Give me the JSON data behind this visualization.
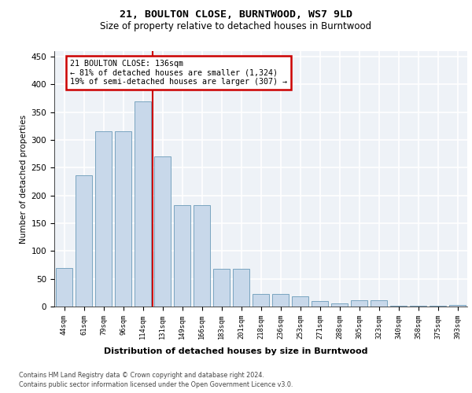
{
  "title": "21, BOULTON CLOSE, BURNTWOOD, WS7 9LD",
  "subtitle": "Size of property relative to detached houses in Burntwood",
  "xlabel": "Distribution of detached houses by size in Burntwood",
  "ylabel": "Number of detached properties",
  "categories": [
    "44sqm",
    "61sqm",
    "79sqm",
    "96sqm",
    "114sqm",
    "131sqm",
    "149sqm",
    "166sqm",
    "183sqm",
    "201sqm",
    "218sqm",
    "236sqm",
    "253sqm",
    "271sqm",
    "288sqm",
    "305sqm",
    "323sqm",
    "340sqm",
    "358sqm",
    "375sqm",
    "393sqm"
  ],
  "values": [
    70,
    237,
    315,
    315,
    370,
    270,
    182,
    182,
    68,
    68,
    23,
    22,
    18,
    10,
    5,
    12,
    12,
    1,
    1,
    1,
    3
  ],
  "bar_color": "#c8d8ea",
  "bar_edge_color": "#6a9ab8",
  "highlight_line_color": "#cc0000",
  "annotation_box_text": "21 BOULTON CLOSE: 136sqm\n← 81% of detached houses are smaller (1,324)\n19% of semi-detached houses are larger (307) →",
  "annotation_box_color": "#cc0000",
  "ylim": [
    0,
    460
  ],
  "yticks": [
    0,
    50,
    100,
    150,
    200,
    250,
    300,
    350,
    400,
    450
  ],
  "background_color": "#eef2f7",
  "grid_color": "#ffffff",
  "footer_line1": "Contains HM Land Registry data © Crown copyright and database right 2024.",
  "footer_line2": "Contains public sector information licensed under the Open Government Licence v3.0."
}
